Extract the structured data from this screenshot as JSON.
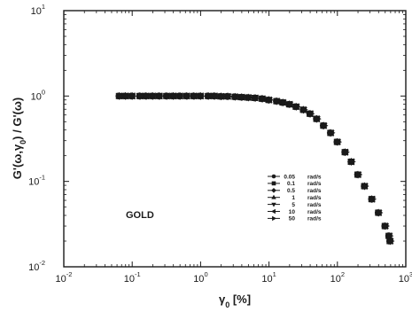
{
  "chart_data": {
    "type": "scatter",
    "xscale": "log",
    "yscale": "log",
    "xlim": [
      0.01,
      1000
    ],
    "ylim": [
      0.01,
      10
    ],
    "x_ticks": [
      {
        "base": "10",
        "exp": "-2",
        "value": 0.01
      },
      {
        "base": "10",
        "exp": "-1",
        "value": 0.1
      },
      {
        "base": "10",
        "exp": "0",
        "value": 1
      },
      {
        "base": "10",
        "exp": "1",
        "value": 10
      },
      {
        "base": "10",
        "exp": "2",
        "value": 100
      },
      {
        "base": "10",
        "exp": "3",
        "value": 1000
      }
    ],
    "y_ticks": [
      {
        "base": "10",
        "exp": "-2",
        "value": 0.01
      },
      {
        "base": "10",
        "exp": "-1",
        "value": 0.1
      },
      {
        "base": "10",
        "exp": "0",
        "value": 1
      },
      {
        "base": "10",
        "exp": "1",
        "value": 10
      }
    ],
    "xlabel": "γ0 [%]",
    "ylabel": "G'(ω,γ0) / G'(ω)",
    "annotation": "GOLD",
    "grid": false,
    "legend_position": "center-right",
    "series": [
      {
        "name": "0.05",
        "unit": "rad/s",
        "marker": "circle",
        "color": "#1a1a1a"
      },
      {
        "name": "0.1",
        "unit": "rad/s",
        "marker": "square",
        "color": "#1a1a1a"
      },
      {
        "name": "0.5",
        "unit": "rad/s",
        "marker": "diamond",
        "color": "#1a1a1a"
      },
      {
        "name": "1",
        "unit": "rad/s",
        "marker": "triangle-up",
        "color": "#1a1a1a"
      },
      {
        "name": "5",
        "unit": "rad/s",
        "marker": "triangle-down",
        "color": "#1a1a1a"
      },
      {
        "name": "10",
        "unit": "rad/s",
        "marker": "triangle-left",
        "color": "#1a1a1a"
      },
      {
        "name": "50",
        "unit": "rad/s",
        "marker": "triangle-right",
        "color": "#1a1a1a"
      }
    ],
    "curve": [
      [
        0.065,
        1.0
      ],
      [
        0.08,
        1.0
      ],
      [
        0.1,
        1.0
      ],
      [
        0.13,
        1.0
      ],
      [
        0.16,
        1.0
      ],
      [
        0.2,
        1.0
      ],
      [
        0.25,
        1.0
      ],
      [
        0.32,
        1.0
      ],
      [
        0.4,
        1.0
      ],
      [
        0.5,
        1.0
      ],
      [
        0.63,
        1.0
      ],
      [
        0.8,
        1.0
      ],
      [
        1.0,
        1.0
      ],
      [
        1.3,
        1.0
      ],
      [
        1.6,
        1.0
      ],
      [
        2.0,
        0.99
      ],
      [
        2.5,
        0.99
      ],
      [
        3.2,
        0.98
      ],
      [
        4.0,
        0.97
      ],
      [
        5.0,
        0.96
      ],
      [
        6.3,
        0.95
      ],
      [
        8.0,
        0.93
      ],
      [
        10,
        0.9
      ],
      [
        13,
        0.87
      ],
      [
        16,
        0.84
      ],
      [
        20,
        0.8
      ],
      [
        25,
        0.75
      ],
      [
        32,
        0.69
      ],
      [
        40,
        0.62
      ],
      [
        50,
        0.54
      ],
      [
        63,
        0.45
      ],
      [
        80,
        0.37
      ],
      [
        100,
        0.29
      ],
      [
        130,
        0.22
      ],
      [
        160,
        0.17
      ],
      [
        200,
        0.12
      ],
      [
        250,
        0.088
      ],
      [
        320,
        0.062
      ],
      [
        400,
        0.043
      ],
      [
        500,
        0.03
      ],
      [
        570,
        0.023
      ],
      [
        590,
        0.02
      ]
    ]
  }
}
